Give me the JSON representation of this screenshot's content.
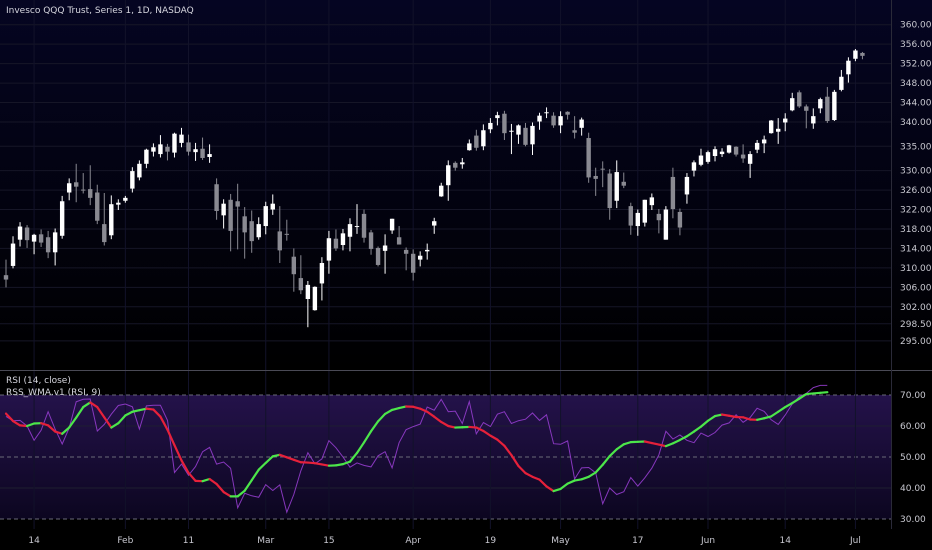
{
  "header": {
    "title": "Invesco QQQ Trust, Series 1, 1D, NASDAQ"
  },
  "indicators": {
    "rsi_label": "RSI (14, close)",
    "rss_label": "RSS_WMA.v1 (RSI, 9)"
  },
  "colors": {
    "background": "#000000",
    "pane_top": "#050522",
    "rsi_band": "#1c0a3c",
    "candle_up": "#ffffff",
    "candle_down": "#8a8a92",
    "rsi_line": "#9b3fd6",
    "rss_up": "#4ce64a",
    "rss_down": "#e6213a"
  },
  "chart_data": [
    {
      "type": "candlestick",
      "title": "Invesco QQQ Trust, Series 1, 1D, NASDAQ",
      "ylim": [
        292,
        362
      ],
      "y_ticks": [
        "360.00",
        "356.00",
        "352.00",
        "348.00",
        "344.00",
        "340.00",
        "335.00",
        "330.00",
        "326.00",
        "322.00",
        "318.00",
        "314.00",
        "310.00",
        "306.00",
        "302.00",
        "298.50",
        "295.00"
      ],
      "x_ticks": [
        "14",
        "Feb",
        "11",
        "Mar",
        "15",
        "Apr",
        "19",
        "May",
        "17",
        "Jun",
        "14",
        "Jul"
      ],
      "grid": true,
      "series": [
        {
          "values": [
            [
              308.5,
              311.7,
              306.0,
              307.6
            ],
            [
              310.4,
              316.5,
              309.9,
              315.0
            ],
            [
              315.8,
              319.4,
              314.4,
              318.5
            ],
            [
              318.3,
              318.8,
              314.1,
              315.7
            ],
            [
              315.4,
              317.0,
              312.8,
              316.8
            ],
            [
              316.9,
              317.9,
              314.3,
              315.2
            ],
            [
              316.3,
              317.6,
              312.0,
              313.2
            ],
            [
              313.2,
              318.1,
              310.5,
              317.3
            ],
            [
              316.6,
              324.8,
              316.0,
              323.7
            ],
            [
              325.5,
              328.4,
              323.9,
              327.4
            ],
            [
              327.6,
              331.4,
              323.5,
              326.7
            ],
            [
              326.1,
              329.5,
              325.3,
              326.0
            ],
            [
              326.2,
              331.1,
              322.9,
              324.4
            ],
            [
              325.5,
              327.1,
              319.0,
              319.7
            ],
            [
              319.0,
              325.4,
              314.6,
              315.3
            ],
            [
              316.7,
              324.9,
              315.9,
              323.1
            ],
            [
              323.0,
              324.1,
              321.9,
              323.4
            ],
            [
              323.8,
              324.8,
              323.4,
              324.4
            ],
            [
              326.3,
              330.7,
              325.5,
              329.9
            ],
            [
              328.6,
              332.1,
              328.0,
              331.4
            ],
            [
              331.4,
              334.5,
              330.5,
              334.3
            ],
            [
              333.9,
              335.6,
              332.9,
              334.8
            ],
            [
              333.4,
              337.3,
              332.7,
              335.4
            ],
            [
              334.9,
              335.5,
              332.1,
              333.9
            ],
            [
              333.7,
              337.8,
              332.7,
              337.6
            ],
            [
              335.7,
              338.8,
              334.8,
              337.4
            ],
            [
              335.8,
              337.4,
              333.1,
              333.9
            ],
            [
              333.8,
              335.7,
              332.0,
              334.4
            ],
            [
              334.5,
              336.8,
              332.2,
              332.6
            ],
            [
              332.8,
              335.4,
              331.6,
              333.4
            ],
            [
              327.2,
              328.4,
              319.9,
              321.7
            ],
            [
              320.8,
              324.1,
              318.1,
              323.2
            ],
            [
              324.0,
              325.2,
              313.4,
              317.6
            ],
            [
              323.7,
              327.3,
              313.8,
              322.6
            ],
            [
              320.6,
              322.5,
              311.9,
              317.3
            ],
            [
              319.6,
              321.8,
              313.1,
              315.5
            ],
            [
              316.3,
              320.4,
              315.8,
              319.0
            ],
            [
              318.6,
              323.6,
              316.9,
              322.7
            ],
            [
              322.0,
              325.1,
              320.9,
              323.2
            ],
            [
              317.5,
              322.7,
              311.0,
              313.6
            ],
            [
              317.0,
              319.9,
              315.6,
              316.8
            ],
            [
              312.3,
              314.0,
              305.1,
              308.7
            ],
            [
              307.9,
              312.6,
              304.6,
              305.4
            ],
            [
              303.6,
              307.3,
              297.8,
              306.5
            ],
            [
              301.3,
              306.2,
              301.2,
              306.1
            ],
            [
              306.8,
              312.2,
              303.3,
              311.0
            ],
            [
              311.5,
              317.6,
              308.8,
              316.1
            ],
            [
              316.0,
              317.9,
              313.5,
              314.0
            ],
            [
              314.7,
              318.0,
              313.6,
              317.1
            ],
            [
              316.4,
              320.2,
              313.4,
              319.0
            ],
            [
              318.4,
              323.1,
              317.0,
              318.6
            ],
            [
              321.1,
              322.0,
              315.2,
              316.2
            ],
            [
              317.3,
              317.8,
              312.7,
              313.9
            ],
            [
              314.1,
              314.4,
              310.3,
              310.6
            ],
            [
              313.5,
              316.9,
              308.8,
              314.6
            ],
            [
              317.7,
              320.1,
              317.0,
              320.1
            ],
            [
              316.3,
              318.6,
              314.8,
              314.8
            ],
            [
              313.7,
              314.2,
              309.5,
              312.9
            ],
            [
              312.9,
              313.8,
              307.4,
              309.0
            ],
            [
              311.7,
              313.4,
              310.3,
              312.5
            ],
            [
              313.4,
              315.0,
              311.7,
              313.7
            ],
            [
              318.7,
              320.3,
              317.0,
              319.6
            ],
            [
              324.7,
              327.5,
              324.6,
              326.9
            ],
            [
              327.0,
              332.1,
              323.8,
              331.1
            ],
            [
              331.6,
              331.9,
              330.0,
              330.6
            ],
            [
              331.3,
              332.6,
              330.4,
              331.7
            ],
            [
              334.2,
              336.4,
              334.1,
              335.6
            ],
            [
              337.2,
              338.4,
              334.1,
              334.7
            ],
            [
              335.0,
              339.5,
              334.2,
              338.3
            ],
            [
              338.5,
              340.8,
              337.7,
              339.8
            ],
            [
              340.8,
              342.1,
              339.3,
              341.4
            ],
            [
              341.7,
              342.3,
              336.3,
              337.7
            ],
            [
              338.2,
              339.6,
              333.4,
              338.2
            ],
            [
              337.4,
              339.5,
              335.5,
              339.3
            ],
            [
              338.8,
              339.8,
              335.0,
              335.3
            ],
            [
              335.4,
              339.9,
              333.2,
              339.2
            ],
            [
              340.1,
              341.9,
              338.4,
              341.3
            ],
            [
              341.9,
              343.0,
              340.8,
              342.0
            ],
            [
              341.3,
              342.0,
              338.8,
              339.3
            ],
            [
              339.3,
              342.2,
              337.7,
              341.2
            ],
            [
              342.1,
              342.2,
              340.5,
              341.5
            ],
            [
              338.3,
              341.2,
              336.6,
              337.8
            ],
            [
              338.8,
              340.9,
              337.2,
              340.5
            ],
            [
              336.7,
              337.8,
              327.5,
              328.6
            ],
            [
              328.9,
              330.6,
              324.8,
              328.3
            ],
            [
              330.4,
              331.9,
              326.6,
              330.2
            ],
            [
              329.4,
              330.3,
              319.9,
              322.3
            ],
            [
              323.8,
              332.1,
              322.3,
              329.7
            ],
            [
              327.7,
              329.6,
              326.4,
              326.9
            ],
            [
              322.7,
              323.4,
              316.8,
              318.7
            ],
            [
              318.6,
              322.0,
              316.6,
              321.3
            ],
            [
              319.3,
              324.0,
              318.5,
              324.0
            ],
            [
              322.9,
              325.3,
              321.9,
              324.5
            ],
            [
              321.1,
              322.1,
              317.1,
              319.8
            ],
            [
              315.8,
              322.7,
              315.8,
              322.0
            ],
            [
              328.7,
              330.6,
              320.2,
              322.1
            ],
            [
              321.5,
              322.2,
              316.7,
              318.3
            ],
            [
              325.1,
              329.5,
              323.2,
              328.7
            ],
            [
              330.0,
              332.1,
              328.8,
              331.7
            ],
            [
              331.2,
              334.5,
              330.9,
              333.1
            ],
            [
              331.8,
              334.1,
              331.4,
              333.8
            ],
            [
              333.0,
              335.0,
              331.9,
              334.4
            ],
            [
              333.4,
              334.6,
              332.8,
              333.9
            ],
            [
              333.7,
              335.3,
              333.5,
              335.2
            ],
            [
              334.9,
              335.0,
              332.9,
              333.3
            ],
            [
              333.3,
              335.4,
              331.6,
              332.5
            ],
            [
              331.4,
              334.0,
              328.5,
              333.4
            ],
            [
              334.3,
              336.3,
              333.6,
              335.7
            ],
            [
              335.6,
              337.2,
              333.6,
              336.4
            ],
            [
              337.7,
              340.4,
              337.6,
              340.3
            ],
            [
              338.0,
              340.8,
              335.5,
              338.6
            ],
            [
              339.9,
              341.8,
              338.1,
              340.7
            ],
            [
              342.4,
              346.0,
              342.2,
              344.9
            ],
            [
              346.1,
              346.5,
              342.9,
              343.2
            ],
            [
              343.2,
              343.6,
              338.7,
              342.3
            ],
            [
              339.7,
              342.8,
              338.6,
              341.2
            ],
            [
              342.8,
              345.0,
              341.8,
              344.7
            ],
            [
              345.2,
              347.2,
              339.8,
              340.2
            ],
            [
              340.4,
              346.6,
              340.2,
              346.2
            ],
            [
              346.6,
              350.7,
              346.3,
              349.3
            ],
            [
              349.8,
              353.3,
              348.1,
              352.6
            ],
            [
              353.0,
              355.0,
              352.5,
              354.7
            ],
            [
              354.2,
              354.4,
              352.9,
              353.6
            ]
          ]
        }
      ]
    },
    {
      "type": "line",
      "title": "RSI (14, close)",
      "ylim": [
        27,
        74
      ],
      "y_ticks": [
        "70.00",
        "60.00",
        "50.00",
        "40.00",
        "30.00"
      ],
      "x_ticks": [
        "14",
        "Feb",
        "11",
        "Mar",
        "15",
        "Apr",
        "19",
        "May",
        "17",
        "Jun",
        "14",
        "Jul"
      ],
      "series": [
        {
          "name": "RSI (14, close)",
          "values": [
            63.1,
            61.7,
            61.8,
            60.0,
            55.4,
            58.6,
            64.6,
            59.0,
            54.2,
            59.4,
            67.8,
            68.6,
            68.7,
            58.4,
            60.5,
            63.8,
            66.6,
            67.1,
            66.2,
            59.0,
            66.5,
            66.7,
            66.7,
            61.8,
            45.0,
            47.7,
            44.1,
            46.9,
            51.7,
            53.1,
            47.7,
            48.4,
            46.4,
            33.6,
            38.3,
            37.5,
            37.0,
            41.1,
            39.2,
            41.0,
            32.2,
            37.9,
            45.5,
            51.4,
            47.8,
            49.4,
            55.3,
            53.0,
            50.0,
            46.7,
            48.1,
            47.3,
            46.8,
            50.4,
            51.7,
            46.5,
            54.6,
            58.8,
            59.8,
            60.6,
            66.1,
            65.1,
            68.6,
            64.6,
            64.8,
            60.8,
            67.9,
            57.5,
            61.1,
            59.8,
            63.8,
            64.6,
            60.8,
            61.7,
            62.2,
            64.2,
            61.8,
            63.6,
            54.3,
            54.1,
            55.2,
            42.9,
            46.5,
            46.6,
            44.9,
            34.9,
            40.0,
            37.9,
            38.8,
            43.4,
            40.6,
            43.3,
            46.4,
            50.7,
            58.3,
            55.8,
            57.1,
            55.4,
            54.6,
            57.7,
            56.6,
            57.9,
            60.3,
            61.0,
            63.6,
            61.2,
            62.7,
            65.7,
            64.7,
            62.0,
            60.5,
            63.5,
            67.1,
            69.5,
            70.5,
            72.4,
            73.1,
            73.1
          ]
        },
        {
          "name": "RSS_WMA.v1 (RSI, 9)",
          "values": [
            64.0,
            61.6,
            60.2,
            60.0,
            60.8,
            60.9,
            60.2,
            58.2,
            57.5,
            59.5,
            62.7,
            66.1,
            67.6,
            66.1,
            62.8,
            59.5,
            60.9,
            63.4,
            64.6,
            65.1,
            65.6,
            65.3,
            63.0,
            58.8,
            53.8,
            48.9,
            44.9,
            42.3,
            42.2,
            42.9,
            41.3,
            38.7,
            37.3,
            37.3,
            39.1,
            42.5,
            45.9,
            48.1,
            50.2,
            50.7,
            49.9,
            49.1,
            48.3,
            48.2,
            48.0,
            47.6,
            47.2,
            47.3,
            47.7,
            48.5,
            51.3,
            54.7,
            58.3,
            61.5,
            63.9,
            65.2,
            65.8,
            66.3,
            66.2,
            65.6,
            64.6,
            63.0,
            61.3,
            60.0,
            59.5,
            59.6,
            59.7,
            59.5,
            58.4,
            56.9,
            55.6,
            53.6,
            50.6,
            47.1,
            44.8,
            43.6,
            42.7,
            40.5,
            39.0,
            39.7,
            41.4,
            42.4,
            42.8,
            43.6,
            45.0,
            47.5,
            50.3,
            52.5,
            54.1,
            54.8,
            54.9,
            55.0,
            54.5,
            54.0,
            53.5,
            54.4,
            55.5,
            56.7,
            58.2,
            59.8,
            61.7,
            63.2,
            63.7,
            63.3,
            62.9,
            62.8,
            62.1,
            62.0,
            62.5,
            63.1,
            64.6,
            66.1,
            67.4,
            68.8,
            70.3,
            70.5,
            70.7,
            70.9
          ]
        }
      ]
    }
  ]
}
